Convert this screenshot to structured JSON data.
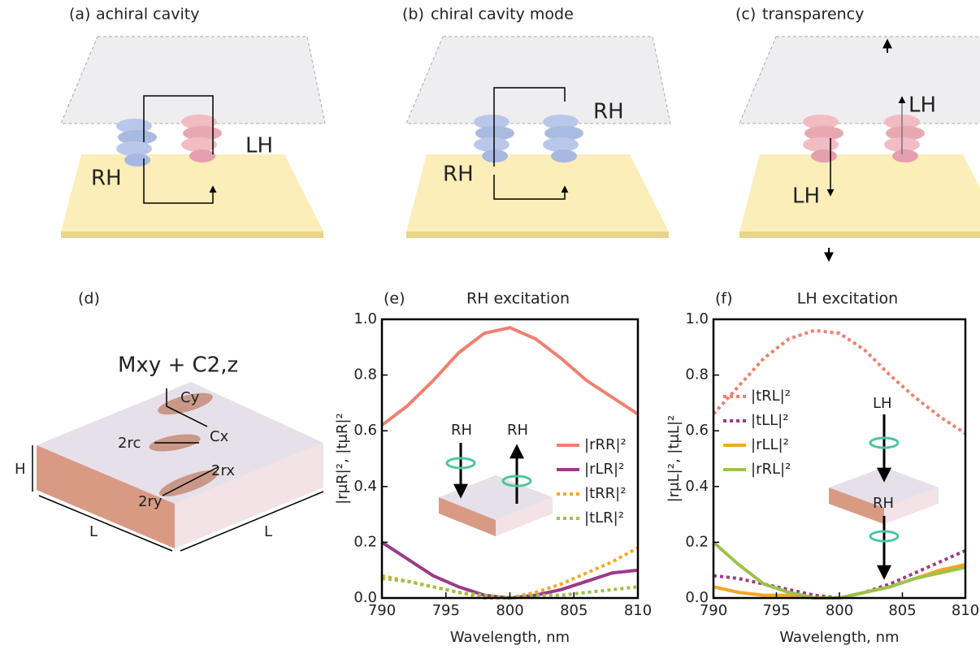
{
  "panels": [
    {
      "label": "(a)",
      "title": "achiral cavity",
      "notes": [
        "RH",
        "LH"
      ]
    },
    {
      "label": "(b)",
      "title": "chiral cavity mode",
      "notes": [
        "RH",
        "RH"
      ]
    },
    {
      "label": "(c)",
      "title": "transparency",
      "notes": [
        "LH",
        "LH"
      ]
    }
  ],
  "unit_cell": {
    "label": "(d)",
    "symmetry": "Mxy + C2,z",
    "dims": [
      "Cy",
      "Cx",
      "2rc",
      "2rx",
      "2ry",
      "H",
      "L",
      "L"
    ]
  },
  "chart_data": [
    {
      "type": "line",
      "label": "(e)",
      "title": "RH excitation",
      "x_label": "Wavelength, nm",
      "y_label": "|rμR|²,  |tμR|²",
      "x": [
        790,
        792,
        794,
        796,
        798,
        800,
        802,
        804,
        806,
        808,
        810
      ],
      "xlim": [
        790,
        810
      ],
      "xticks": [
        790,
        795,
        800,
        805,
        810
      ],
      "ylim": [
        0,
        1
      ],
      "yticks": [
        {
          "value": 0,
          "label": "0.0"
        },
        0.2,
        0.4,
        0.6,
        0.8,
        {
          "value": 1,
          "label": "1.0"
        }
      ],
      "legend": "center-right",
      "inset_labels": [
        "RH",
        "RH"
      ],
      "series": [
        {
          "name": "|rRR|²",
          "color": "#f08070",
          "dashed": false,
          "values": [
            0.62,
            0.69,
            0.78,
            0.88,
            0.95,
            0.97,
            0.93,
            0.86,
            0.78,
            0.72,
            0.66
          ]
        },
        {
          "name": "|rLR|²",
          "color": "#9b3a8a",
          "dashed": false,
          "values": [
            0.2,
            0.14,
            0.08,
            0.04,
            0.01,
            0.0,
            0.01,
            0.03,
            0.06,
            0.09,
            0.1
          ]
        },
        {
          "name": "|tRR|²",
          "color": "#f5a623",
          "dashed": true,
          "values": [
            0.08,
            0.06,
            0.04,
            0.02,
            0.0,
            0.0,
            0.02,
            0.05,
            0.09,
            0.13,
            0.18
          ]
        },
        {
          "name": "|tLR|²",
          "color": "#9cc24a",
          "dashed": true,
          "values": [
            0.07,
            0.06,
            0.04,
            0.02,
            0.01,
            0.0,
            0.01,
            0.01,
            0.02,
            0.03,
            0.04
          ]
        }
      ]
    },
    {
      "type": "line",
      "label": "(f)",
      "title": "LH excitation",
      "x_label": "Wavelength, nm",
      "y_label": "|rμL|²,  |tμL|²",
      "x": [
        790,
        792,
        794,
        796,
        798,
        800,
        802,
        804,
        806,
        808,
        810
      ],
      "xlim": [
        790,
        810
      ],
      "xticks": [
        790,
        795,
        800,
        805,
        810
      ],
      "ylim": [
        0,
        1
      ],
      "yticks": [
        {
          "value": 0,
          "label": "0.0"
        },
        0.2,
        0.4,
        0.6,
        0.8,
        {
          "value": 1,
          "label": "1.0"
        }
      ],
      "legend": "center-left",
      "inset_labels": [
        "LH",
        "RH"
      ],
      "series": [
        {
          "name": "|tRL|²",
          "color": "#f08070",
          "dashed": true,
          "values": [
            0.66,
            0.76,
            0.86,
            0.93,
            0.96,
            0.95,
            0.89,
            0.8,
            0.72,
            0.65,
            0.59
          ]
        },
        {
          "name": "|tLL|²",
          "color": "#9b3a8a",
          "dashed": true,
          "values": [
            0.08,
            0.07,
            0.05,
            0.03,
            0.01,
            0.0,
            0.02,
            0.05,
            0.09,
            0.13,
            0.17
          ]
        },
        {
          "name": "|rLL|²",
          "color": "#f5a623",
          "dashed": false,
          "values": [
            0.04,
            0.02,
            0.01,
            0.01,
            0.0,
            0.0,
            0.02,
            0.04,
            0.07,
            0.1,
            0.12
          ]
        },
        {
          "name": "|rRL|²",
          "color": "#9cc24a",
          "dashed": false,
          "values": [
            0.2,
            0.12,
            0.05,
            0.02,
            0.0,
            0.0,
            0.02,
            0.04,
            0.07,
            0.09,
            0.11
          ]
        }
      ]
    }
  ]
}
